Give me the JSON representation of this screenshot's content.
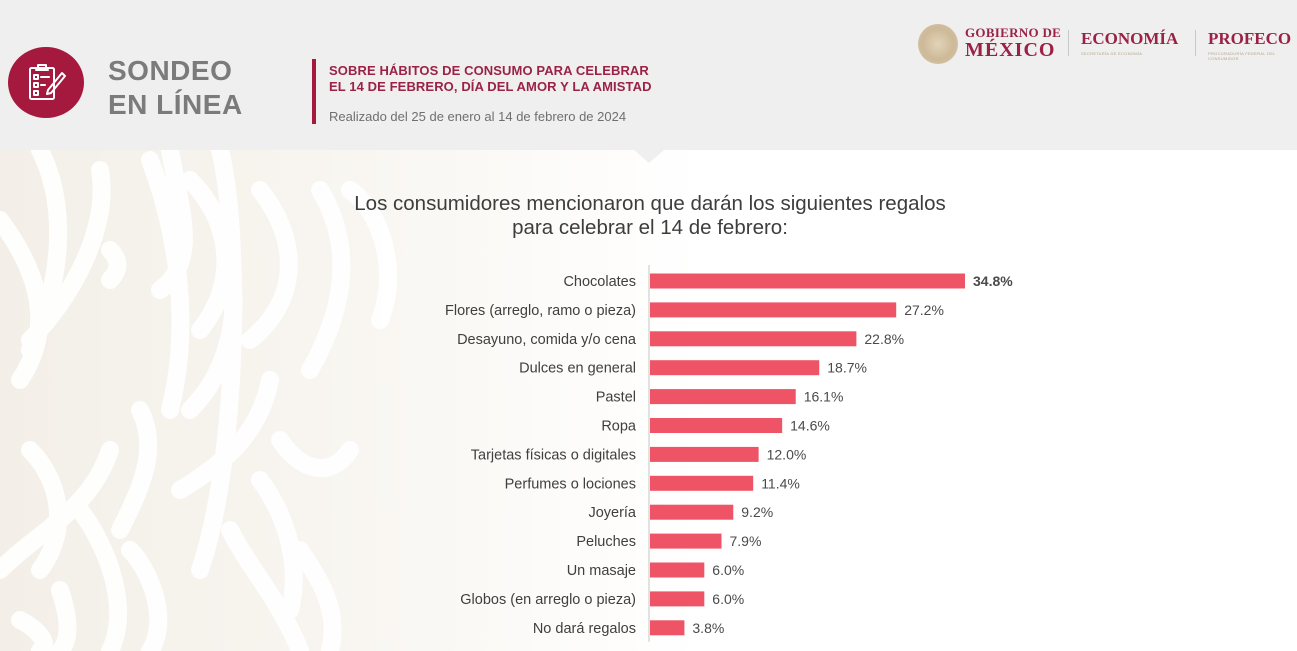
{
  "header": {
    "badge_icon": "clipboard-checklist-pencil-icon",
    "title_line1": "SONDEO",
    "title_line2": "EN LÍNEA",
    "subtitle_line1": "SOBRE HÁBITOS DE CONSUMO PARA CELEBRAR",
    "subtitle_line2": "EL 14 DE FEBRERO, DÍA DEL AMOR Y LA AMISTAD",
    "date_range": "Realizado del 25 de enero al 14 de febrero de 2024"
  },
  "logos": {
    "gobierno_line1": "GOBIERNO DE",
    "gobierno_line2": "MÉXICO",
    "economia": "ECONOMÍA",
    "economia_sub": "SECRETARÍA DE ECONOMÍA",
    "profeco": "PROFECO",
    "profeco_sub": "PROCURADURÍA FEDERAL DEL CONSUMIDOR"
  },
  "colors": {
    "brand": "#9b2247",
    "badge": "#a4193d",
    "bar": "#ef5466",
    "header_bg": "#efefef"
  },
  "chart_data": {
    "type": "bar",
    "orientation": "horizontal",
    "title_line1": "Los consumidores mencionaron que darán los siguientes regalos",
    "title_line2": "para celebrar el 14 de febrero:",
    "xlabel": "",
    "ylabel": "",
    "unit": "%",
    "xlim": [
      0,
      35
    ],
    "grid": false,
    "legend": "none",
    "categories": [
      "Chocolates",
      "Flores (arreglo, ramo o pieza)",
      "Desayuno, comida y/o cena",
      "Dulces en general",
      "Pastel",
      "Ropa",
      "Tarjetas físicas o digitales",
      "Perfumes o lociones",
      "Joyería",
      "Peluches",
      "Un masaje",
      "Globos (en arreglo o pieza)",
      "No dará regalos"
    ],
    "values": [
      34.8,
      27.2,
      22.8,
      18.7,
      16.1,
      14.6,
      12.0,
      11.4,
      9.2,
      7.9,
      6.0,
      6.0,
      3.8
    ],
    "value_labels": [
      "34.8%",
      "27.2%",
      "22.8%",
      "18.7%",
      "16.1%",
      "14.6%",
      "12.0%",
      "11.4%",
      "9.2%",
      "7.9%",
      "6.0%",
      "6.0%",
      "3.8%"
    ],
    "highlighted_index": 0
  }
}
